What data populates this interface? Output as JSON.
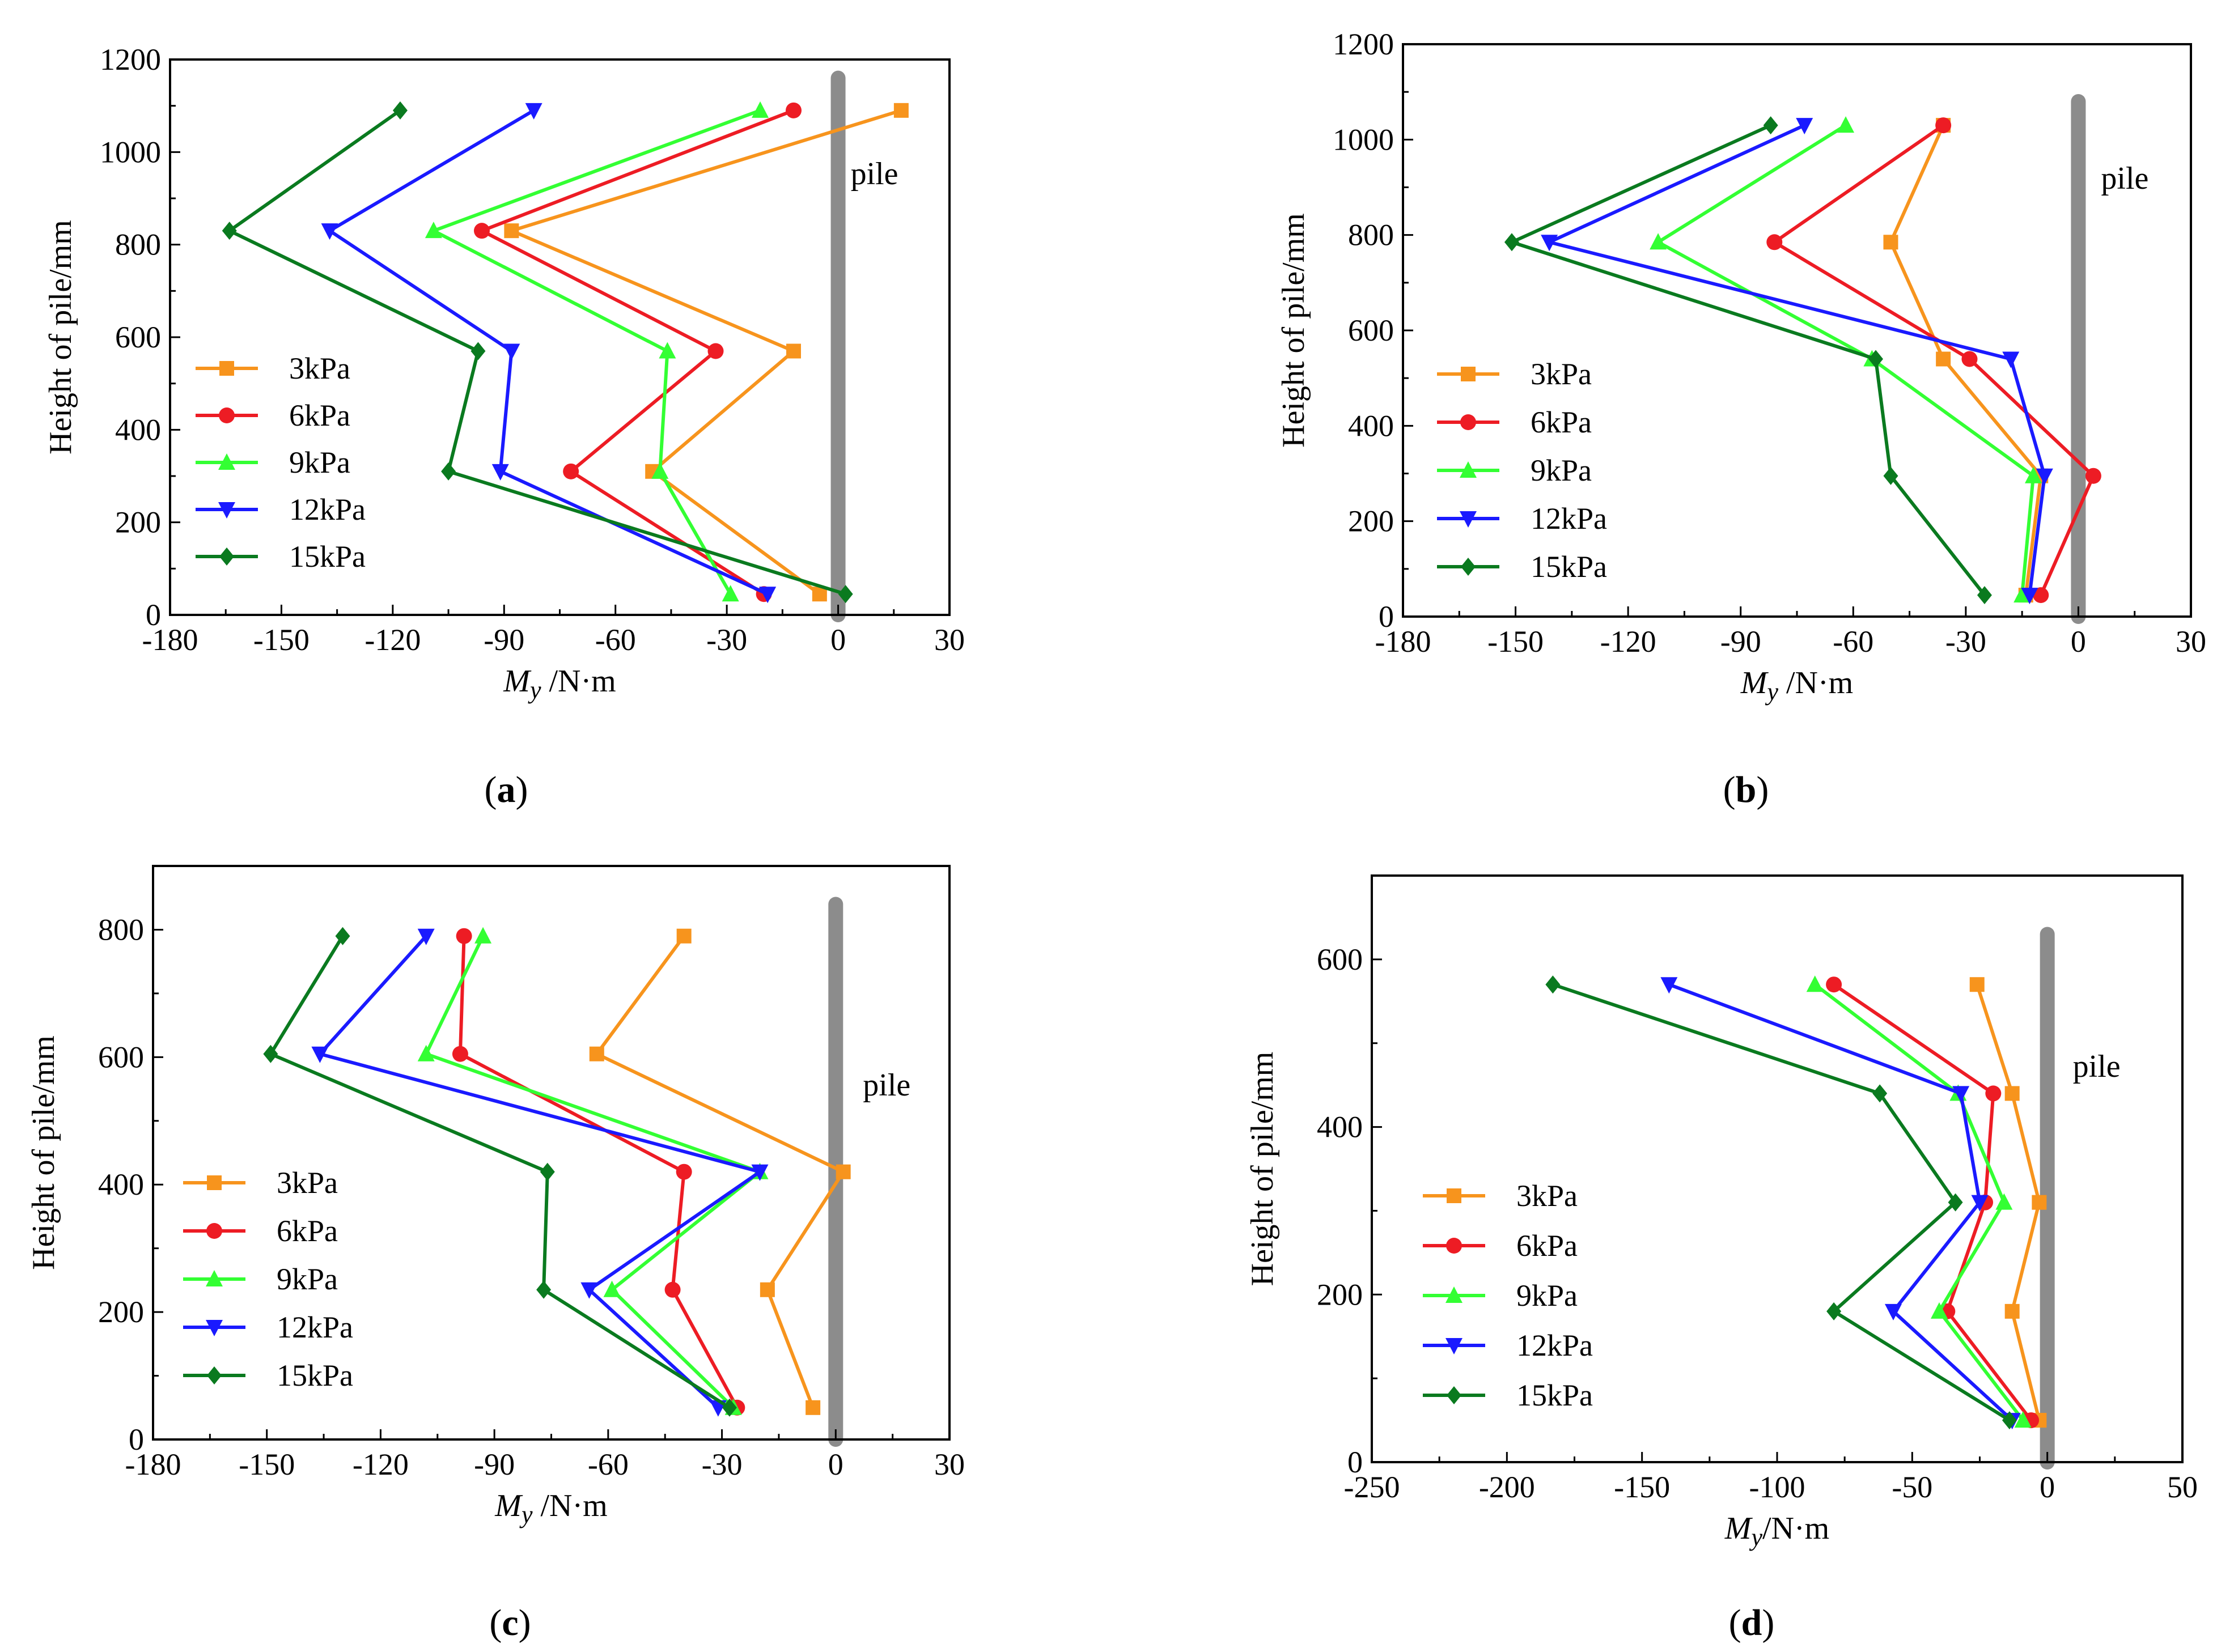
{
  "colors": {
    "3kPa": "#f7941d",
    "6kPa": "#ed1c24",
    "9kPa": "#33ff33",
    "12kPa": "#1a1aff",
    "15kPa": "#0a7a1f",
    "pile": "#8c8c8c"
  },
  "chart_data": [
    {
      "id": "a",
      "type": "line",
      "panel_label": "(a)",
      "panel_letter": "a",
      "xlabel": "M",
      "xlabel_sub": "y",
      "xlabel_unit": " /N·m",
      "ylabel": "Height of pile/mm",
      "xlim": [
        -180,
        30
      ],
      "ylim": [
        0,
        1200
      ],
      "xticks": [
        -180,
        -150,
        -120,
        -90,
        -60,
        -30,
        0,
        30
      ],
      "yticks": [
        0,
        200,
        400,
        600,
        800,
        1000,
        1200
      ],
      "pile_label": "pile",
      "pile_top": 1160,
      "pile_x": 0,
      "legend_pos": "center-left",
      "series": [
        {
          "name": "3kPa",
          "marker": "square",
          "x": [
            -5,
            -50,
            -12,
            -88,
            17
          ],
          "y": [
            45,
            310,
            570,
            830,
            1090
          ]
        },
        {
          "name": "6kPa",
          "marker": "circle",
          "x": [
            -20,
            -72,
            -33,
            -96,
            -12
          ],
          "y": [
            45,
            310,
            570,
            830,
            1090
          ]
        },
        {
          "name": "9kPa",
          "marker": "triangle-up",
          "x": [
            -29,
            -48,
            -46,
            -109,
            -21
          ],
          "y": [
            45,
            310,
            570,
            830,
            1090
          ]
        },
        {
          "name": "12kPa",
          "marker": "triangle-down",
          "x": [
            -19,
            -91,
            -88,
            -137,
            -82
          ],
          "y": [
            45,
            310,
            570,
            830,
            1090
          ]
        },
        {
          "name": "15kPa",
          "marker": "diamond",
          "x": [
            2,
            -105,
            -97,
            -164,
            -118
          ],
          "y": [
            45,
            310,
            570,
            830,
            1090
          ]
        }
      ]
    },
    {
      "id": "b",
      "type": "line",
      "panel_label": "(b)",
      "panel_letter": "b",
      "xlabel": "M",
      "xlabel_sub": "y",
      "xlabel_unit": " /N·m",
      "ylabel": "Height of pile/mm",
      "xlim": [
        -180,
        30
      ],
      "ylim": [
        0,
        1200
      ],
      "xticks": [
        -180,
        -150,
        -120,
        -90,
        -60,
        -30,
        0,
        30
      ],
      "yticks": [
        0,
        200,
        400,
        600,
        800,
        1000,
        1200
      ],
      "pile_label": "pile",
      "pile_top": 1080,
      "pile_x": 0,
      "legend_pos": "center-left",
      "series": [
        {
          "name": "3kPa",
          "marker": "square",
          "x": [
            -14,
            -10,
            -36,
            -50,
            -36
          ],
          "y": [
            45,
            295,
            540,
            785,
            1030
          ]
        },
        {
          "name": "6kPa",
          "marker": "circle",
          "x": [
            -10,
            4,
            -29,
            -81,
            -36
          ],
          "y": [
            45,
            295,
            540,
            785,
            1030
          ]
        },
        {
          "name": "9kPa",
          "marker": "triangle-up",
          "x": [
            -15,
            -12,
            -55,
            -112,
            -62
          ],
          "y": [
            45,
            295,
            540,
            785,
            1030
          ]
        },
        {
          "name": "12kPa",
          "marker": "triangle-down",
          "x": [
            -13,
            -9,
            -18,
            -141,
            -73
          ],
          "y": [
            45,
            295,
            540,
            785,
            1030
          ]
        },
        {
          "name": "15kPa",
          "marker": "diamond",
          "x": [
            -25,
            -50,
            -54,
            -151,
            -82
          ],
          "y": [
            45,
            295,
            540,
            785,
            1030
          ]
        }
      ]
    },
    {
      "id": "c",
      "type": "line",
      "panel_label": "(c)",
      "panel_letter": "c",
      "xlabel": "M",
      "xlabel_sub": "y",
      "xlabel_unit": " /N·m",
      "ylabel": "Height of pile/mm",
      "xlim": [
        -180,
        30
      ],
      "ylim": [
        0,
        900
      ],
      "xticks": [
        -180,
        -150,
        -120,
        -90,
        -60,
        -30,
        0,
        30
      ],
      "yticks": [
        0,
        200,
        400,
        600,
        800
      ],
      "pile_label": "pile",
      "pile_top": 840,
      "pile_x": 0,
      "legend_pos": "lower-left",
      "series": [
        {
          "name": "3kPa",
          "marker": "square",
          "x": [
            -6,
            -18,
            2,
            -63,
            -40
          ],
          "y": [
            50,
            235,
            420,
            605,
            790
          ]
        },
        {
          "name": "6kPa",
          "marker": "circle",
          "x": [
            -26,
            -43,
            -40,
            -99,
            -98
          ],
          "y": [
            50,
            235,
            420,
            605,
            790
          ]
        },
        {
          "name": "9kPa",
          "marker": "triangle-up",
          "x": [
            -27,
            -59,
            -20,
            -108,
            -93
          ],
          "y": [
            50,
            235,
            420,
            605,
            790
          ]
        },
        {
          "name": "12kPa",
          "marker": "triangle-down",
          "x": [
            -31,
            -65,
            -20,
            -136,
            -108
          ],
          "y": [
            50,
            235,
            420,
            605,
            790
          ]
        },
        {
          "name": "15kPa",
          "marker": "diamond",
          "x": [
            -28,
            -77,
            -76,
            -149,
            -130
          ],
          "y": [
            50,
            235,
            420,
            605,
            790
          ]
        }
      ]
    },
    {
      "id": "d",
      "type": "line",
      "panel_label": "(d)",
      "panel_letter": "d",
      "xlabel": "M",
      "xlabel_sub": "y",
      "xlabel_unit": "/N·m",
      "ylabel": "Height of pile/mm",
      "xlim": [
        -250,
        50
      ],
      "ylim": [
        0,
        700
      ],
      "xticks": [
        -250,
        -200,
        -150,
        -100,
        -50,
        0,
        50
      ],
      "yticks": [
        0,
        200,
        400,
        600
      ],
      "pile_label": "pile",
      "pile_top": 630,
      "pile_x": 0,
      "legend_pos": "lower-left",
      "series": [
        {
          "name": "3kPa",
          "marker": "square",
          "x": [
            -3,
            -13,
            -3,
            -13,
            -26
          ],
          "y": [
            50,
            180,
            310,
            440,
            570
          ]
        },
        {
          "name": "6kPa",
          "marker": "circle",
          "x": [
            -6,
            -37,
            -23,
            -20,
            -79
          ],
          "y": [
            50,
            180,
            310,
            440,
            570
          ]
        },
        {
          "name": "9kPa",
          "marker": "triangle-up",
          "x": [
            -9,
            -40,
            -16,
            -33,
            -86
          ],
          "y": [
            50,
            180,
            310,
            440,
            570
          ]
        },
        {
          "name": "12kPa",
          "marker": "triangle-down",
          "x": [
            -13,
            -57,
            -25,
            -32,
            -140
          ],
          "y": [
            50,
            180,
            310,
            440,
            570
          ]
        },
        {
          "name": "15kPa",
          "marker": "diamond",
          "x": [
            -14,
            -79,
            -34,
            -62,
            -183
          ],
          "y": [
            50,
            180,
            310,
            440,
            570
          ]
        }
      ]
    }
  ]
}
